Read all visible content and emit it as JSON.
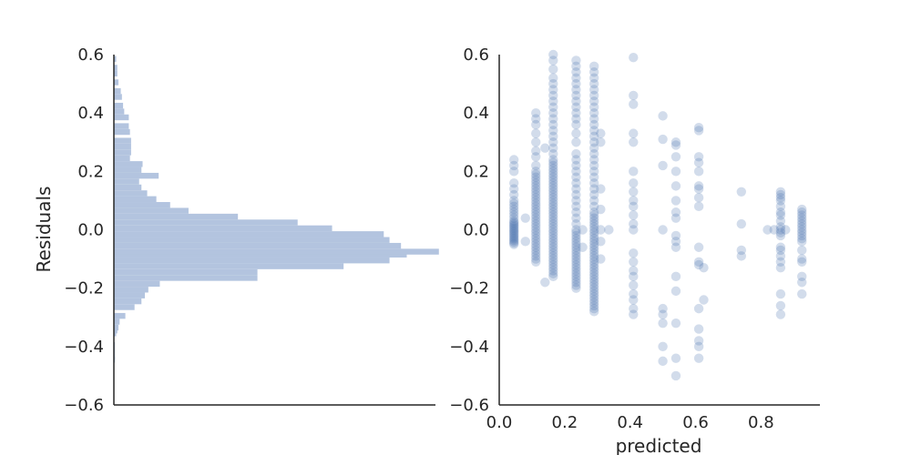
{
  "chart_data": [
    {
      "type": "bar",
      "orientation": "horizontal",
      "title": "",
      "xlabel": "",
      "ylabel": "Residuals",
      "ylim": [
        -0.6,
        0.6
      ],
      "y_ticks": [
        "−0.6",
        "−0.4",
        "−0.2",
        "0.0",
        "0.2",
        "0.4",
        "0.6"
      ],
      "y_tick_values": [
        -0.6,
        -0.4,
        -0.2,
        0.0,
        0.2,
        0.4,
        0.6
      ],
      "x_ticks": [],
      "xlim": [
        0,
        280
      ],
      "grid": false,
      "color": "#b3c4df",
      "bins": [
        {
          "y": -0.445,
          "count": 1
        },
        {
          "y": -0.435,
          "count": 1
        },
        {
          "y": -0.425,
          "count": 0
        },
        {
          "y": -0.415,
          "count": 1
        },
        {
          "y": -0.395,
          "count": 1
        },
        {
          "y": -0.355,
          "count": 2
        },
        {
          "y": -0.345,
          "count": 3
        },
        {
          "y": -0.335,
          "count": 4
        },
        {
          "y": -0.315,
          "count": 5
        },
        {
          "y": -0.295,
          "count": 10
        },
        {
          "y": -0.265,
          "count": 18
        },
        {
          "y": -0.245,
          "count": 24
        },
        {
          "y": -0.225,
          "count": 27
        },
        {
          "y": -0.205,
          "count": 30
        },
        {
          "y": -0.185,
          "count": 40
        },
        {
          "y": -0.165,
          "count": 125
        },
        {
          "y": -0.145,
          "count": 125
        },
        {
          "y": -0.125,
          "count": 200
        },
        {
          "y": -0.105,
          "count": 240
        },
        {
          "y": -0.085,
          "count": 255
        },
        {
          "y": -0.075,
          "count": 283
        },
        {
          "y": -0.055,
          "count": 250
        },
        {
          "y": -0.035,
          "count": 240
        },
        {
          "y": -0.015,
          "count": 235
        },
        {
          "y": 0.005,
          "count": 190
        },
        {
          "y": 0.025,
          "count": 160
        },
        {
          "y": 0.045,
          "count": 108
        },
        {
          "y": 0.065,
          "count": 65
        },
        {
          "y": 0.085,
          "count": 49
        },
        {
          "y": 0.105,
          "count": 37
        },
        {
          "y": 0.125,
          "count": 29
        },
        {
          "y": 0.145,
          "count": 24
        },
        {
          "y": 0.165,
          "count": 22
        },
        {
          "y": 0.185,
          "count": 39
        },
        {
          "y": 0.205,
          "count": 24
        },
        {
          "y": 0.225,
          "count": 25
        },
        {
          "y": 0.245,
          "count": 14
        },
        {
          "y": 0.265,
          "count": 15
        },
        {
          "y": 0.285,
          "count": 15
        },
        {
          "y": 0.305,
          "count": 15
        },
        {
          "y": 0.335,
          "count": 14
        },
        {
          "y": 0.355,
          "count": 13
        },
        {
          "y": 0.385,
          "count": 13
        },
        {
          "y": 0.405,
          "count": 9
        },
        {
          "y": 0.425,
          "count": 8
        },
        {
          "y": 0.455,
          "count": 7
        },
        {
          "y": 0.475,
          "count": 6
        },
        {
          "y": 0.505,
          "count": 4
        },
        {
          "y": 0.535,
          "count": 3
        },
        {
          "y": 0.555,
          "count": 3
        },
        {
          "y": 0.585,
          "count": 2
        }
      ]
    },
    {
      "type": "scatter",
      "title": "",
      "xlabel": "predicted",
      "ylabel": "",
      "xlim": [
        0.0,
        0.98
      ],
      "ylim": [
        -0.6,
        0.6
      ],
      "x_ticks": [
        "0.0",
        "0.2",
        "0.4",
        "0.6",
        "0.8"
      ],
      "x_tick_values": [
        0.0,
        0.2,
        0.4,
        0.6,
        0.8
      ],
      "y_ticks": [
        "−0.6",
        "−0.4",
        "−0.2",
        "0.0",
        "0.2",
        "0.4",
        "0.6"
      ],
      "y_tick_values": [
        -0.6,
        -0.4,
        -0.2,
        0.0,
        0.2,
        0.4,
        0.6
      ],
      "grid": false,
      "color": "#4c72b0",
      "opacity": 0.25,
      "columns": [
        {
          "x": 0.045,
          "y": [
            -0.05,
            -0.045,
            -0.04,
            -0.035,
            -0.03,
            -0.025,
            -0.02,
            -0.015,
            -0.01,
            -0.005,
            0.0,
            0.005,
            0.01,
            0.015,
            0.02,
            0.025,
            0.03,
            0.04,
            0.05,
            0.06,
            0.07,
            0.08,
            0.09,
            0.1,
            0.12,
            0.14,
            0.16,
            0.2,
            0.22,
            0.24
          ]
        },
        {
          "x": 0.08,
          "y": [
            -0.04,
            0.04
          ]
        },
        {
          "x": 0.112,
          "y": [
            -0.11,
            -0.1,
            -0.09,
            -0.08,
            -0.07,
            -0.06,
            -0.05,
            -0.04,
            -0.03,
            -0.02,
            -0.01,
            0.0,
            0.01,
            0.02,
            0.03,
            0.04,
            0.05,
            0.06,
            0.07,
            0.08,
            0.09,
            0.1,
            0.11,
            0.12,
            0.13,
            0.14,
            0.15,
            0.16,
            0.17,
            0.18,
            0.19,
            0.2,
            0.22,
            0.25,
            0.27,
            0.3,
            0.33,
            0.36,
            0.38,
            0.4
          ]
        },
        {
          "x": 0.14,
          "y": [
            -0.18,
            0.28
          ]
        },
        {
          "x": 0.165,
          "y": [
            -0.16,
            -0.15,
            -0.14,
            -0.13,
            -0.12,
            -0.11,
            -0.1,
            -0.09,
            -0.08,
            -0.07,
            -0.06,
            -0.05,
            -0.04,
            -0.03,
            -0.02,
            -0.01,
            0.0,
            0.01,
            0.02,
            0.03,
            0.04,
            0.05,
            0.06,
            0.07,
            0.08,
            0.09,
            0.1,
            0.11,
            0.12,
            0.13,
            0.14,
            0.15,
            0.16,
            0.17,
            0.18,
            0.19,
            0.2,
            0.21,
            0.22,
            0.23,
            0.24,
            0.26,
            0.28,
            0.3,
            0.32,
            0.34,
            0.36,
            0.38,
            0.4,
            0.42,
            0.44,
            0.46,
            0.48,
            0.5,
            0.52,
            0.55,
            0.58,
            0.6
          ]
        },
        {
          "x": 0.235,
          "y": [
            -0.2,
            -0.19,
            -0.18,
            -0.17,
            -0.16,
            -0.15,
            -0.14,
            -0.13,
            -0.12,
            -0.11,
            -0.1,
            -0.09,
            -0.08,
            -0.07,
            -0.06,
            -0.05,
            -0.04,
            -0.03,
            -0.02,
            -0.01,
            0.0,
            0.02,
            0.04,
            0.06,
            0.08,
            0.1,
            0.12,
            0.14,
            0.16,
            0.18,
            0.2,
            0.22,
            0.24,
            0.26,
            0.3,
            0.33,
            0.36,
            0.38,
            0.4,
            0.42,
            0.44,
            0.46,
            0.48,
            0.5,
            0.52,
            0.54,
            0.56,
            0.58
          ]
        },
        {
          "x": 0.255,
          "y": [
            -0.06,
            0.0
          ]
        },
        {
          "x": 0.29,
          "y": [
            -0.28,
            -0.27,
            -0.26,
            -0.25,
            -0.24,
            -0.23,
            -0.22,
            -0.21,
            -0.2,
            -0.19,
            -0.18,
            -0.17,
            -0.16,
            -0.15,
            -0.14,
            -0.13,
            -0.12,
            -0.11,
            -0.1,
            -0.09,
            -0.08,
            -0.07,
            -0.06,
            -0.05,
            -0.04,
            -0.03,
            -0.02,
            -0.01,
            0.0,
            0.01,
            0.02,
            0.03,
            0.04,
            0.05,
            0.06,
            0.08,
            0.1,
            0.12,
            0.14,
            0.16,
            0.18,
            0.2,
            0.22,
            0.24,
            0.26,
            0.28,
            0.3,
            0.32,
            0.34,
            0.36,
            0.38,
            0.4,
            0.42,
            0.44,
            0.46,
            0.48,
            0.5,
            0.52,
            0.54,
            0.56
          ]
        },
        {
          "x": 0.31,
          "y": [
            -0.1,
            -0.04,
            0.0,
            0.07,
            0.14,
            0.3,
            0.33
          ]
        },
        {
          "x": 0.335,
          "y": [
            0.0
          ]
        },
        {
          "x": 0.41,
          "y": [
            -0.29,
            -0.27,
            -0.24,
            -0.22,
            -0.19,
            -0.16,
            -0.14,
            -0.11,
            -0.08,
            0.0,
            0.02,
            0.05,
            0.08,
            0.1,
            0.13,
            0.16,
            0.2,
            0.3,
            0.33,
            0.43,
            0.46,
            0.59
          ]
        },
        {
          "x": 0.5,
          "y": [
            -0.45,
            -0.4,
            -0.32,
            -0.29,
            -0.27,
            0.0,
            0.22,
            0.31,
            0.39
          ]
        },
        {
          "x": 0.54,
          "y": [
            -0.5,
            -0.44,
            -0.32,
            -0.21,
            -0.16,
            -0.06,
            -0.04,
            -0.02,
            0.04,
            0.06,
            0.1,
            0.15,
            0.2,
            0.25,
            0.29,
            0.3
          ]
        },
        {
          "x": 0.61,
          "y": [
            -0.44,
            -0.4,
            -0.38,
            -0.34,
            -0.27,
            -0.12,
            -0.11,
            -0.06,
            0.08,
            0.11,
            0.14,
            0.15,
            0.2,
            0.23,
            0.25,
            0.34,
            0.35
          ]
        },
        {
          "x": 0.625,
          "y": [
            -0.24,
            -0.13
          ]
        },
        {
          "x": 0.74,
          "y": [
            -0.09,
            -0.07,
            0.02,
            0.13
          ]
        },
        {
          "x": 0.82,
          "y": [
            0.0
          ]
        },
        {
          "x": 0.84,
          "y": [
            0.0
          ]
        },
        {
          "x": 0.86,
          "y": [
            -0.29,
            -0.26,
            -0.22,
            -0.13,
            -0.11,
            -0.09,
            -0.07,
            -0.06,
            -0.02,
            -0.01,
            0.0,
            0.01,
            0.03,
            0.05,
            0.06,
            0.08,
            0.1,
            0.11,
            0.12,
            0.13
          ]
        },
        {
          "x": 0.875,
          "y": [
            0.0
          ]
        },
        {
          "x": 0.925,
          "y": [
            -0.22,
            -0.18,
            -0.16,
            -0.11,
            -0.1,
            -0.07,
            -0.04,
            -0.03,
            -0.02,
            -0.01,
            0.0,
            0.01,
            0.02,
            0.03,
            0.04,
            0.05,
            0.06,
            0.07
          ]
        }
      ]
    }
  ]
}
